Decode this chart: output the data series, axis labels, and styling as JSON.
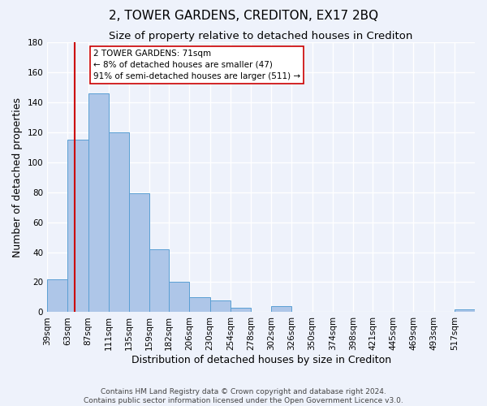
{
  "title": "2, TOWER GARDENS, CREDITON, EX17 2BQ",
  "subtitle": "Size of property relative to detached houses in Crediton",
  "xlabel": "Distribution of detached houses by size in Crediton",
  "ylabel": "Number of detached properties",
  "bin_edges": [
    39,
    63,
    87,
    111,
    135,
    159,
    182,
    206,
    230,
    254,
    278,
    302,
    326,
    350,
    374,
    398,
    421,
    445,
    469,
    493,
    517
  ],
  "bin_labels": [
    "39sqm",
    "63sqm",
    "87sqm",
    "111sqm",
    "135sqm",
    "159sqm",
    "182sqm",
    "206sqm",
    "230sqm",
    "254sqm",
    "278sqm",
    "302sqm",
    "326sqm",
    "350sqm",
    "374sqm",
    "398sqm",
    "421sqm",
    "445sqm",
    "469sqm",
    "493sqm",
    "517sqm"
  ],
  "counts": [
    22,
    115,
    146,
    120,
    79,
    42,
    20,
    10,
    8,
    3,
    0,
    4,
    0,
    0,
    0,
    0,
    0,
    0,
    0,
    0,
    2
  ],
  "bar_color": "#aec6e8",
  "bar_edge_color": "#5a9fd4",
  "property_line_x": 71,
  "property_line_color": "#cc0000",
  "annotation_text": "2 TOWER GARDENS: 71sqm\n← 8% of detached houses are smaller (47)\n91% of semi-detached houses are larger (511) →",
  "annotation_box_color": "#ffffff",
  "annotation_box_edge": "#cc0000",
  "ylim": [
    0,
    180
  ],
  "yticks": [
    0,
    20,
    40,
    60,
    80,
    100,
    120,
    140,
    160,
    180
  ],
  "footer_line1": "Contains HM Land Registry data © Crown copyright and database right 2024.",
  "footer_line2": "Contains public sector information licensed under the Open Government Licence v3.0.",
  "background_color": "#eef2fb",
  "grid_color": "#ffffff",
  "title_fontsize": 11,
  "subtitle_fontsize": 9.5,
  "label_fontsize": 9,
  "tick_fontsize": 7.5,
  "footer_fontsize": 6.5,
  "annot_fontsize": 7.5
}
